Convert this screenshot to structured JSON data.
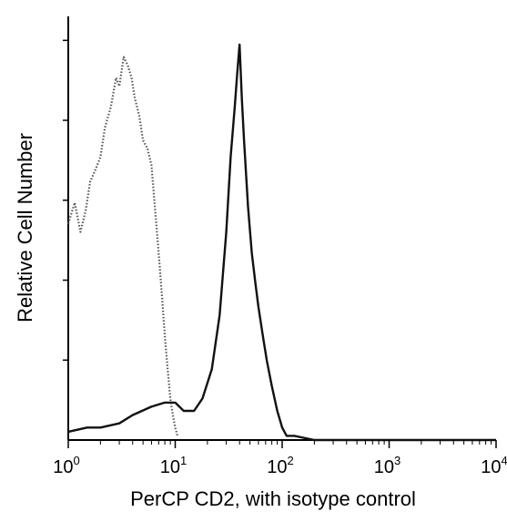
{
  "chart_data": {
    "type": "line",
    "title": "",
    "xlabel": "PerCP CD2, with isotype control",
    "ylabel": "Relative Cell Number",
    "xscale": "log",
    "xlim": [
      1,
      10000
    ],
    "ylim": [
      0,
      1
    ],
    "grid": false,
    "legend": "none",
    "x_ticks": [
      {
        "value": 1,
        "base": "10",
        "exp": "0"
      },
      {
        "value": 10,
        "base": "10",
        "exp": "1"
      },
      {
        "value": 100,
        "base": "10",
        "exp": "2"
      },
      {
        "value": 1000,
        "base": "10",
        "exp": "3"
      },
      {
        "value": 10000,
        "base": "10",
        "exp": "4"
      }
    ],
    "series": [
      {
        "style": "dotted",
        "color": "#555555",
        "x": [
          1.0,
          1.15,
          1.3,
          1.45,
          1.6,
          1.8,
          2.0,
          2.2,
          2.5,
          2.8,
          3.0,
          3.3,
          3.6,
          3.9,
          4.2,
          4.6,
          5.0,
          5.5,
          6.0,
          6.5,
          7.0,
          7.5,
          8.0,
          8.5,
          9.0,
          9.5,
          10.0,
          10.5
        ],
        "y": [
          0.52,
          0.57,
          0.5,
          0.55,
          0.62,
          0.65,
          0.68,
          0.75,
          0.8,
          0.87,
          0.85,
          0.92,
          0.9,
          0.87,
          0.82,
          0.78,
          0.72,
          0.7,
          0.66,
          0.55,
          0.45,
          0.35,
          0.25,
          0.17,
          0.1,
          0.06,
          0.03,
          0.01
        ]
      },
      {
        "style": "solid",
        "color": "#111111",
        "x": [
          1.0,
          1.5,
          2.0,
          3.0,
          4.0,
          6.0,
          8.0,
          10.0,
          12.0,
          15.0,
          18.0,
          22.0,
          26.0,
          30.0,
          33.0,
          36.0,
          38.0,
          40.0,
          42.0,
          44.0,
          48.0,
          52.0,
          56.0,
          60.0,
          66.0,
          72.0,
          80.0,
          90.0,
          100.0,
          110.0,
          130.0,
          200.0,
          500.0,
          1000.0,
          3000.0,
          10000.0
        ],
        "y": [
          0.02,
          0.03,
          0.03,
          0.04,
          0.06,
          0.08,
          0.09,
          0.09,
          0.07,
          0.07,
          0.1,
          0.17,
          0.3,
          0.5,
          0.68,
          0.8,
          0.88,
          0.95,
          0.82,
          0.72,
          0.56,
          0.45,
          0.38,
          0.32,
          0.25,
          0.19,
          0.13,
          0.07,
          0.03,
          0.01,
          0.01,
          0.0,
          0.0,
          0.0,
          0.0,
          0.0
        ]
      }
    ]
  }
}
